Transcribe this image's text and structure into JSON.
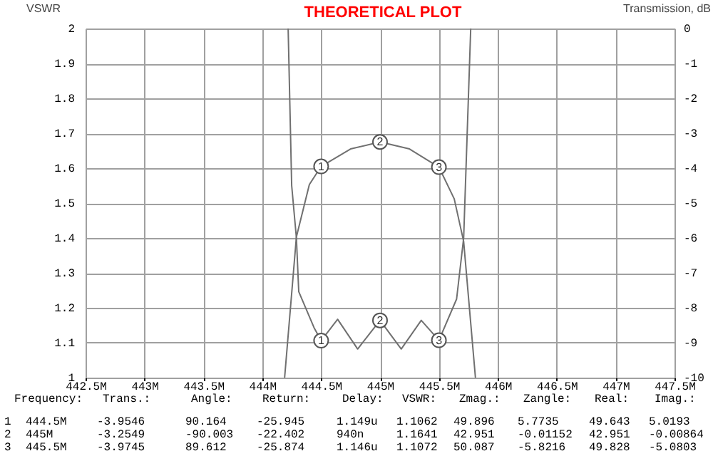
{
  "chart_data": {
    "type": "line",
    "title": "THEORETICAL PLOT",
    "ylabel": "VSWR",
    "y2label": "Transmission, dB",
    "xlim": [
      442.5,
      447.5
    ],
    "xticks": [
      {
        "value": 442.5,
        "label": "442.5M"
      },
      {
        "value": 443,
        "label": "443M"
      },
      {
        "value": 443.5,
        "label": "443.5M"
      },
      {
        "value": 444,
        "label": "444M"
      },
      {
        "value": 444.5,
        "label": "444.5M"
      },
      {
        "value": 445,
        "label": "445M"
      },
      {
        "value": 445.5,
        "label": "445.5M"
      },
      {
        "value": 446,
        "label": "446M"
      },
      {
        "value": 446.5,
        "label": "446.5M"
      },
      {
        "value": 447,
        "label": "447M"
      },
      {
        "value": 447.5,
        "label": "447.5M"
      }
    ],
    "ylim": [
      1,
      2
    ],
    "yticks": [
      1,
      1.1,
      1.2,
      1.3,
      1.4,
      1.5,
      1.6,
      1.7,
      1.8,
      1.9,
      2
    ],
    "y2lim": [
      -10,
      0
    ],
    "y2ticks": [
      0,
      -1,
      -2,
      -3,
      -4,
      -5,
      -6,
      -7,
      -8,
      -9,
      -10
    ],
    "grid": true,
    "legend": false,
    "line_style": "solid",
    "marker": "none",
    "series": [
      {
        "color": "#707070",
        "x": [
          444.22,
          444.25,
          444.29,
          444.31,
          444.44,
          444.5,
          444.64,
          444.81,
          445,
          445.18,
          445.35,
          445.5,
          445.65,
          445.71,
          445.77
        ],
        "values": [
          2,
          1.55,
          1.4,
          1.246,
          1.143,
          1.106,
          1.167,
          1.082,
          1.164,
          1.082,
          1.164,
          1.107,
          1.225,
          1.4,
          2
        ]
      },
      {
        "color": "#707070",
        "axis": "y2",
        "x": [
          444.19,
          444.29,
          444.4,
          444.5,
          444.75,
          445,
          445.25,
          445.5,
          445.63,
          445.71,
          445.81
        ],
        "values": [
          -10,
          -5.97,
          -4.47,
          -3.95,
          -3.45,
          -3.25,
          -3.45,
          -3.97,
          -4.88,
          -6.1,
          -10
        ]
      }
    ],
    "annotations": [
      {
        "text": "1",
        "x": 444.5,
        "y": 1.106
      },
      {
        "text": "2",
        "x": 445,
        "y": 1.164
      },
      {
        "text": "3",
        "x": 445.5,
        "y": 1.107
      },
      {
        "text": "1",
        "x": 444.5,
        "y": 1.605
      },
      {
        "text": "2",
        "x": 445,
        "y": 1.675
      },
      {
        "text": "3",
        "x": 445.5,
        "y": 1.603
      },
      "Frequency:",
      "Trans.:",
      "Angle:",
      "Return:",
      "Delay:",
      "VSWR:",
      "Zmag.:",
      "Zangle:",
      "Real:",
      "Imag.:",
      "1",
      "444.5M",
      "-3.9546",
      "90.164",
      "-25.945",
      "1.149u",
      "1.1062",
      "49.896",
      "5.7735",
      "49.643",
      "5.0193",
      "2",
      "445M",
      "-3.2549",
      "-90.003",
      "-22.402",
      "940n",
      "1.1641",
      "42.951",
      "-0.01152",
      "42.951",
      "-0.00864",
      "3",
      "445.5M",
      "-3.9745",
      "89.612",
      "-25.874",
      "1.146u",
      "1.1072",
      "50.087",
      "-5.8216",
      "49.828",
      "-5.0803"
    ]
  }
}
